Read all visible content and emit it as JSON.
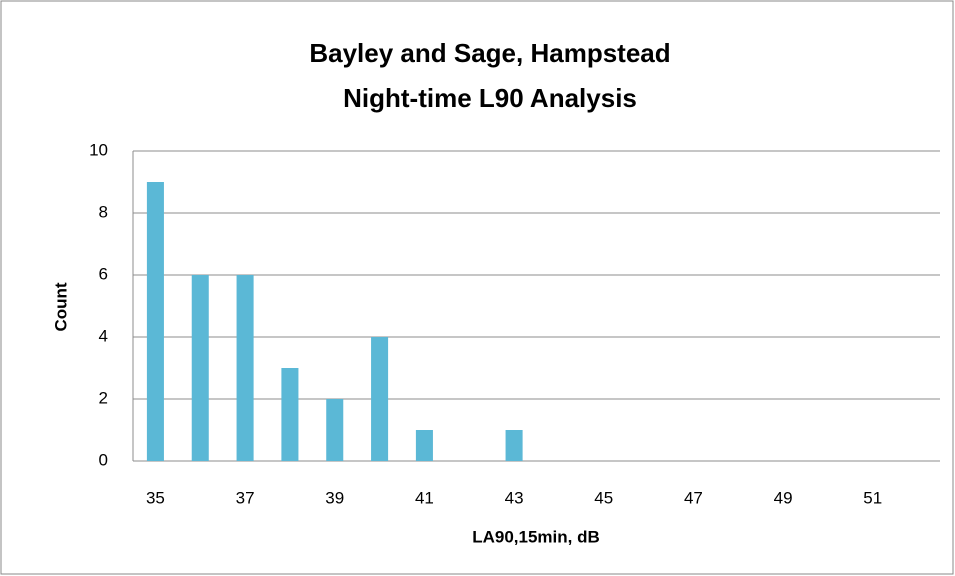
{
  "chart_data": {
    "type": "bar",
    "title": [
      "Bayley and Sage, Hampstead",
      "Night-time L90 Analysis"
    ],
    "x_label": "LA90,15min, dB",
    "y_label": "Count",
    "categories": [
      "35",
      null,
      "37",
      null,
      "39",
      null,
      "41",
      null,
      "43",
      null,
      "45",
      null,
      "47",
      null,
      "49",
      null,
      "51",
      null
    ],
    "values": [
      9,
      6,
      6,
      3,
      2,
      4,
      1,
      0,
      1,
      0,
      0,
      0,
      0,
      0,
      0,
      0,
      0,
      0
    ],
    "color": "#5bb8d6",
    "ylim": [
      0,
      10
    ],
    "yticks": [
      0,
      2,
      4,
      6,
      8,
      10
    ],
    "grid": true
  }
}
